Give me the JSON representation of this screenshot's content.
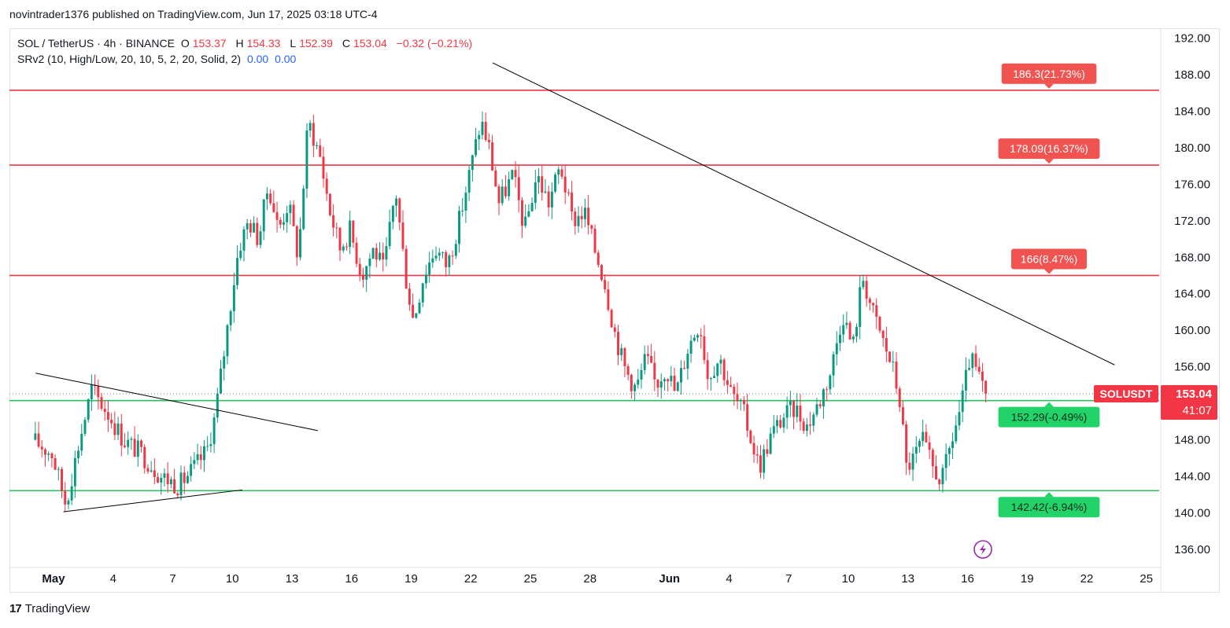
{
  "publish_line": "novintrader1376 published on TradingView.com, Jun 17, 2025 03:18 UTC-4",
  "legend": {
    "symbol": "SOL / TetherUS · 4h · BINANCE",
    "o_label": "O",
    "o_value": "153.37",
    "h_label": "H",
    "h_value": "154.33",
    "l_label": "L",
    "l_value": "152.39",
    "c_label": "C",
    "c_value": "153.04",
    "change": "−0.32 (−0.21%)",
    "indicator": "SRv2 (10, High/Low, 20, 10, 5, 2, 20, Solid, 2)",
    "ind_v1": "0.00",
    "ind_v2": "0.00"
  },
  "footer": {
    "brand": "TradingView",
    "logo_text": "17"
  },
  "price_badge": {
    "symbol": "SOLUSDT",
    "price": "153.04",
    "countdown": "41:07"
  },
  "colors": {
    "up": "#089981",
    "down": "#f23645",
    "resistance": "#f23645",
    "support": "#22c55e",
    "trend": "#000000",
    "accent": "#9c27b0"
  },
  "icons": {
    "lightning": "lightning-icon"
  },
  "chart_data": {
    "type": "candlestick",
    "symbol": "SOLUSDT",
    "timeframe": "4h",
    "ylim": [
      134,
      193
    ],
    "y_ticks": [
      "192.00",
      "188.00",
      "184.00",
      "180.00",
      "176.00",
      "172.00",
      "168.00",
      "164.00",
      "160.00",
      "156.00",
      "152.00",
      "148.00",
      "144.00",
      "140.00",
      "136.00"
    ],
    "x_ticks": [
      {
        "label": "May",
        "bold": true
      },
      {
        "label": "4"
      },
      {
        "label": "7"
      },
      {
        "label": "10"
      },
      {
        "label": "13"
      },
      {
        "label": "16"
      },
      {
        "label": "19"
      },
      {
        "label": "22"
      },
      {
        "label": "25"
      },
      {
        "label": "28"
      },
      {
        "label": "Jun",
        "bold": true
      },
      {
        "label": "4"
      },
      {
        "label": "7"
      },
      {
        "label": "10"
      },
      {
        "label": "13"
      },
      {
        "label": "16"
      },
      {
        "label": "19"
      },
      {
        "label": "22"
      },
      {
        "label": "25"
      }
    ],
    "x_days": [
      1,
      4,
      7,
      10,
      13,
      16,
      19,
      22,
      25,
      28,
      32,
      35,
      38,
      41,
      44,
      47,
      50,
      53,
      56
    ],
    "levels": [
      {
        "price": 186.3,
        "label": "186.3(21.73%)",
        "kind": "resistance"
      },
      {
        "price": 178.09,
        "label": "178.09(16.37%)",
        "kind": "resistance"
      },
      {
        "price": 166.0,
        "label": "166(8.47%)",
        "kind": "resistance"
      },
      {
        "price": 152.29,
        "label": "152.29(-0.49%)",
        "kind": "support"
      },
      {
        "price": 142.42,
        "label": "142.42(-6.94%)",
        "kind": "support"
      }
    ],
    "last_price": 153.04,
    "trendlines": [
      {
        "from": [
          0.1,
          155.3
        ],
        "to": [
          14.3,
          149.0
        ]
      },
      {
        "from": [
          1.5,
          140.1
        ],
        "to": [
          10.5,
          142.5
        ]
      },
      {
        "from": [
          23.1,
          189.3
        ],
        "to": [
          54.4,
          156.2
        ]
      }
    ],
    "price_path": [
      [
        0.0,
        148.0
      ],
      [
        1.0,
        146.5
      ],
      [
        1.7,
        141.0
      ],
      [
        2.4,
        148.0
      ],
      [
        3.0,
        153.5
      ],
      [
        3.8,
        151.0
      ],
      [
        4.6,
        148.0
      ],
      [
        5.5,
        146.5
      ],
      [
        6.5,
        144.0
      ],
      [
        7.4,
        143.0
      ],
      [
        8.2,
        145.0
      ],
      [
        8.8,
        146.8
      ],
      [
        9.2,
        150.5
      ],
      [
        9.6,
        156.5
      ],
      [
        10.0,
        163.0
      ],
      [
        10.4,
        169.0
      ],
      [
        10.9,
        172.0
      ],
      [
        11.4,
        170.0
      ],
      [
        11.9,
        176.0
      ],
      [
        12.4,
        171.0
      ],
      [
        12.9,
        174.0
      ],
      [
        13.4,
        168.0
      ],
      [
        13.9,
        183.0
      ],
      [
        14.5,
        179.0
      ],
      [
        15.0,
        173.0
      ],
      [
        15.5,
        169.0
      ],
      [
        16.0,
        171.0
      ],
      [
        16.6,
        166.0
      ],
      [
        17.2,
        169.0
      ],
      [
        17.7,
        166.5
      ],
      [
        18.3,
        175.5
      ],
      [
        18.8,
        166.0
      ],
      [
        19.2,
        161.0
      ],
      [
        19.7,
        166.0
      ],
      [
        20.3,
        169.0
      ],
      [
        20.9,
        167.0
      ],
      [
        21.5,
        172.0
      ],
      [
        22.1,
        178.0
      ],
      [
        22.6,
        183.0
      ],
      [
        23.0,
        180.0
      ],
      [
        23.5,
        174.0
      ],
      [
        24.2,
        177.0
      ],
      [
        24.8,
        171.0
      ],
      [
        25.4,
        177.0
      ],
      [
        26.0,
        174.0
      ],
      [
        26.6,
        178.0
      ],
      [
        27.2,
        172.0
      ],
      [
        27.8,
        173.0
      ],
      [
        28.3,
        169.0
      ],
      [
        28.8,
        165.5
      ],
      [
        29.3,
        160.0
      ],
      [
        29.8,
        156.0
      ],
      [
        30.4,
        153.5
      ],
      [
        30.9,
        157.0
      ],
      [
        31.4,
        154.0
      ],
      [
        31.9,
        156.0
      ],
      [
        32.4,
        153.0
      ],
      [
        33.0,
        158.0
      ],
      [
        33.6,
        161.0
      ],
      [
        34.0,
        155.0
      ],
      [
        34.6,
        157.0
      ],
      [
        35.2,
        153.0
      ],
      [
        35.8,
        151.0
      ],
      [
        36.2,
        148.0
      ],
      [
        36.6,
        145.0
      ],
      [
        37.2,
        148.5
      ],
      [
        37.8,
        150.5
      ],
      [
        38.4,
        151.5
      ],
      [
        39.0,
        149.5
      ],
      [
        39.6,
        152.0
      ],
      [
        40.2,
        155.5
      ],
      [
        40.8,
        162.0
      ],
      [
        41.3,
        158.0
      ],
      [
        41.8,
        166.0
      ],
      [
        42.3,
        162.0
      ],
      [
        42.8,
        159.0
      ],
      [
        43.3,
        156.0
      ],
      [
        43.7,
        152.0
      ],
      [
        44.0,
        145.0
      ],
      [
        44.4,
        146.0
      ],
      [
        44.8,
        148.0
      ],
      [
        45.3,
        145.0
      ],
      [
        45.8,
        143.5
      ],
      [
        46.3,
        148.0
      ],
      [
        46.8,
        152.0
      ],
      [
        47.2,
        157.0
      ],
      [
        47.6,
        155.0
      ],
      [
        48.0,
        153.0
      ]
    ],
    "candle_count": 288
  }
}
